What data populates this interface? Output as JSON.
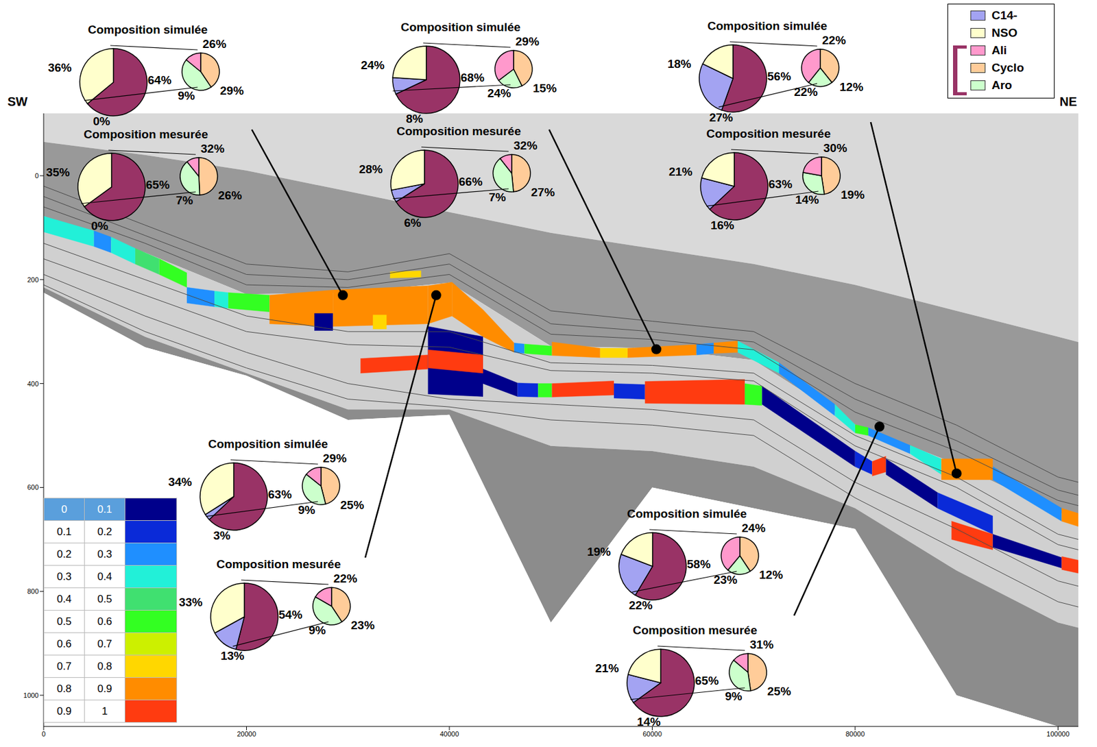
{
  "chart_data": {
    "type": "cross_section",
    "labels": {
      "left": "SW",
      "right": "NE"
    },
    "legend": "top-right",
    "series": [
      {
        "name": "C14-",
        "color": "#a3a3f2"
      },
      {
        "name": "NSO",
        "color": "#ffffcc"
      },
      {
        "name": "Ali",
        "color": "#ff99cc"
      },
      {
        "name": "Cyclo",
        "color": "#ffcc99"
      },
      {
        "name": "Aro",
        "color": "#ccffcc"
      }
    ],
    "group_color": "#993366",
    "xlim": [
      0,
      102000
    ],
    "xticks": [
      0,
      20000,
      40000,
      60000,
      80000,
      100000
    ],
    "ylim": [
      -120,
      1060
    ],
    "yticks": [
      0,
      200,
      400,
      600,
      800,
      1000
    ],
    "color_scale": {
      "bins": [
        0,
        0.1,
        0.2,
        0.3,
        0.4,
        0.5,
        0.6,
        0.7,
        0.8,
        0.9,
        1
      ],
      "colors": [
        "#00008b",
        "#0a2ad8",
        "#1f8fff",
        "#22f0d8",
        "#40e070",
        "#33ff22",
        "#ccf000",
        "#ffd700",
        "#ff8c00",
        "#ff3b10"
      ]
    },
    "grid_x": [
      0,
      10000,
      20000,
      30000,
      40000,
      50000,
      60000,
      70000,
      80000,
      90000,
      100000,
      102000
    ],
    "surfaces": {
      "dark_top": [
        -65,
        -40,
        -10,
        30,
        70,
        110,
        140,
        170,
        210,
        260,
        310,
        320
      ],
      "reservoir_top": [
        78,
        148,
        228,
        225,
        206,
        328,
        332,
        355,
        479,
        555,
        648,
        660
      ],
      "lower_dark_top": [
        215,
        310,
        380,
        450,
        450,
        520,
        530,
        560,
        640,
        760,
        860,
        870
      ],
      "base": [
        225,
        330,
        385,
        470,
        460,
        860,
        600,
        640,
        680,
        1000,
        1060,
        1060
      ],
      "horizons": [
        [
          20,
          95,
          170,
          185,
          150,
          260,
          280,
          300,
          400,
          480,
          580,
          590
        ],
        [
          40,
          115,
          190,
          200,
          170,
          285,
          300,
          320,
          430,
          510,
          605,
          615
        ],
        [
          60,
          130,
          210,
          215,
          190,
          305,
          315,
          335,
          455,
          530,
          625,
          635
        ],
        [
          130,
          200,
          270,
          300,
          300,
          360,
          365,
          380,
          500,
          580,
          690,
          700
        ],
        [
          160,
          230,
          300,
          325,
          330,
          375,
          380,
          395,
          520,
          600,
          710,
          720
        ],
        [
          190,
          270,
          340,
          400,
          430,
          440,
          450,
          470,
          590,
          680,
          780,
          790
        ],
        [
          210,
          300,
          370,
          430,
          445,
          470,
          480,
          500,
          620,
          720,
          820,
          830
        ]
      ]
    },
    "segments": [
      {
        "x": [
          0,
          4960
        ],
        "top": [
          78,
          106
        ],
        "base": [
          108,
          136
        ],
        "class": 3
      },
      {
        "x": [
          4960,
          6650
        ],
        "top": [
          106,
          118
        ],
        "base": [
          136,
          148
        ],
        "class": 2
      },
      {
        "x": [
          6650,
          9030
        ],
        "top": [
          118,
          140
        ],
        "base": [
          148,
          170
        ],
        "class": 3
      },
      {
        "x": [
          9030,
          11410
        ],
        "top": [
          140,
          160
        ],
        "base": [
          170,
          190
        ],
        "class": 4
      },
      {
        "x": [
          11410,
          14120
        ],
        "top": [
          160,
          187
        ],
        "base": [
          190,
          215
        ],
        "class": 5
      },
      {
        "x": [
          14120,
          16840
        ],
        "top": [
          215,
          222
        ],
        "base": [
          245,
          252
        ],
        "class": 2
      },
      {
        "x": [
          16840,
          18200
        ],
        "top": [
          222,
          225
        ],
        "base": [
          252,
          255
        ],
        "class": 3
      },
      {
        "x": [
          18200,
          22270
        ],
        "top": [
          225,
          230
        ],
        "base": [
          255,
          262
        ],
        "class": 5
      },
      {
        "x": [
          22270,
          28520
        ],
        "top": [
          230,
          220
        ],
        "base": [
          285,
          290
        ],
        "class": 8
      },
      {
        "x": [
          28520,
          37890
        ],
        "top": [
          220,
          212
        ],
        "base": [
          290,
          285
        ],
        "class": 8
      },
      {
        "x": [
          37890,
          40260
        ],
        "top": [
          212,
          205
        ],
        "base": [
          285,
          270
        ],
        "class": 8
      },
      {
        "x": [
          40260,
          43320
        ],
        "top": [
          205,
          258
        ],
        "base": [
          270,
          310
        ],
        "class": 8
      },
      {
        "x": [
          43320,
          46380
        ],
        "top": [
          258,
          322
        ],
        "base": [
          310,
          340
        ],
        "class": 8
      },
      {
        "x": [
          46380,
          47400
        ],
        "top": [
          322,
          324
        ],
        "base": [
          340,
          342
        ],
        "class": 2
      },
      {
        "x": [
          47400,
          50110
        ],
        "top": [
          324,
          328
        ],
        "base": [
          342,
          346
        ],
        "class": 5
      },
      {
        "x": [
          50110,
          54860
        ],
        "top": [
          320,
          332
        ],
        "base": [
          346,
          350
        ],
        "class": 8
      },
      {
        "x": [
          54860,
          57570
        ],
        "top": [
          332,
          332
        ],
        "base": [
          350,
          350
        ],
        "class": 7
      },
      {
        "x": [
          57570,
          64360
        ],
        "top": [
          332,
          325
        ],
        "base": [
          350,
          345
        ],
        "class": 8
      },
      {
        "x": [
          64360,
          66060
        ],
        "top": [
          325,
          322
        ],
        "base": [
          345,
          342
        ],
        "class": 2
      },
      {
        "x": [
          66060,
          68430
        ],
        "top": [
          322,
          318
        ],
        "base": [
          342,
          340
        ],
        "class": 8
      },
      {
        "x": [
          68430,
          72500
        ],
        "top": [
          318,
          360
        ],
        "base": [
          340,
          380
        ],
        "class": 3
      },
      {
        "x": [
          72500,
          78000
        ],
        "top": [
          360,
          440
        ],
        "base": [
          380,
          462
        ],
        "class": 2
      },
      {
        "x": [
          78000,
          80000
        ],
        "top": [
          440,
          479
        ],
        "base": [
          462,
          495
        ],
        "class": 3
      },
      {
        "x": [
          80000,
          81300
        ],
        "top": [
          479,
          485
        ],
        "base": [
          495,
          500
        ],
        "class": 5
      },
      {
        "x": [
          81300,
          85420
        ],
        "top": [
          485,
          519
        ],
        "base": [
          500,
          535
        ],
        "class": 2
      },
      {
        "x": [
          85420,
          88500
        ],
        "top": [
          519,
          545
        ],
        "base": [
          535,
          575
        ],
        "class": 3
      },
      {
        "x": [
          88500,
          93570
        ],
        "top": [
          545,
          545
        ],
        "base": [
          585,
          585
        ],
        "class": 8
      },
      {
        "x": [
          93570,
          100360
        ],
        "top": [
          560,
          640
        ],
        "base": [
          585,
          665
        ],
        "class": 2
      },
      {
        "x": [
          100360,
          102000
        ],
        "top": [
          640,
          650
        ],
        "base": [
          665,
          675
        ],
        "class": 8
      },
      {
        "x": [
          26690,
          28520
        ],
        "top": [
          265,
          265
        ],
        "base": [
          298,
          298
        ],
        "class": 0
      },
      {
        "x": [
          32460,
          33810
        ],
        "top": [
          268,
          268
        ],
        "base": [
          295,
          295
        ],
        "class": 7
      },
      {
        "x": [
          34150,
          37210
        ],
        "top": [
          185,
          183
        ],
        "base": [
          197,
          195
        ],
        "class": 7
      },
      {
        "x": [
          31240,
          37890
        ],
        "top": [
          352,
          345
        ],
        "base": [
          380,
          372
        ],
        "class": 9
      },
      {
        "x": [
          37890,
          43320
        ],
        "top": [
          290,
          310
        ],
        "base": [
          420,
          425
        ],
        "class": 0
      },
      {
        "x": [
          37890,
          43320
        ],
        "top": [
          335,
          345
        ],
        "base": [
          370,
          380
        ],
        "class": 9
      },
      {
        "x": [
          43320,
          46720
        ],
        "top": [
          372,
          399
        ],
        "base": [
          400,
          425
        ],
        "class": 0
      },
      {
        "x": [
          46720,
          48750
        ],
        "top": [
          399,
          400
        ],
        "base": [
          425,
          426
        ],
        "class": 1
      },
      {
        "x": [
          48750,
          50110
        ],
        "top": [
          400,
          400
        ],
        "base": [
          426,
          426
        ],
        "class": 5
      },
      {
        "x": [
          50110,
          56220
        ],
        "top": [
          400,
          395
        ],
        "base": [
          426,
          422
        ],
        "class": 9
      },
      {
        "x": [
          56220,
          59280
        ],
        "top": [
          400,
          402
        ],
        "base": [
          428,
          430
        ],
        "class": 1
      },
      {
        "x": [
          59280,
          69120
        ],
        "top": [
          396,
          392
        ],
        "base": [
          438,
          440
        ],
        "class": 9
      },
      {
        "x": [
          69120,
          70820
        ],
        "top": [
          400,
          405
        ],
        "base": [
          440,
          442
        ],
        "class": 5
      },
      {
        "x": [
          70820,
          79990
        ],
        "top": [
          405,
          530
        ],
        "base": [
          440,
          560
        ],
        "class": 0
      },
      {
        "x": [
          79990,
          81680
        ],
        "top": [
          530,
          550
        ],
        "base": [
          560,
          575
        ],
        "class": 1
      },
      {
        "x": [
          81680,
          83040
        ],
        "top": [
          550,
          540
        ],
        "base": [
          578,
          570
        ],
        "class": 9
      },
      {
        "x": [
          83040,
          88130
        ],
        "top": [
          545,
          610
        ],
        "base": [
          575,
          640
        ],
        "class": 0
      },
      {
        "x": [
          88130,
          93570
        ],
        "top": [
          610,
          655
        ],
        "base": [
          640,
          690
        ],
        "class": 1
      },
      {
        "x": [
          89500,
          93570
        ],
        "top": [
          665,
          690
        ],
        "base": [
          700,
          720
        ],
        "class": 9
      },
      {
        "x": [
          93570,
          100360
        ],
        "top": [
          690,
          735
        ],
        "base": [
          715,
          755
        ],
        "class": 0
      },
      {
        "x": [
          100360,
          102000
        ],
        "top": [
          733,
          740
        ],
        "base": [
          758,
          765
        ],
        "class": 9
      }
    ],
    "sites": [
      {
        "x": 29500,
        "depth": 230,
        "simulated": {
          "title": "Composition simulée",
          "main": {
            "values": [
              0,
              36,
              64
            ],
            "value_labels": [
              "0%",
              "36%",
              "64%"
            ]
          },
          "detail": {
            "values": [
              9,
              26,
              29
            ],
            "value_labels": [
              "9%",
              "26%",
              "29%"
            ]
          }
        },
        "measured": {
          "title": "Composition mesurée",
          "main": {
            "values": [
              0,
              35,
              65
            ],
            "value_labels": [
              "0%",
              "35%",
              "65%"
            ]
          },
          "detail": {
            "values": [
              7,
              32,
              26
            ],
            "value_labels": [
              "7%",
              "32%",
              "26%"
            ]
          }
        }
      },
      {
        "x": 38700,
        "depth": 230,
        "simulated": {
          "title": "Composition simulée",
          "main": {
            "values": [
              3,
              34,
              63
            ],
            "value_labels": [
              "3%",
              "34%",
              "63%"
            ]
          },
          "detail": {
            "values": [
              9,
              29,
              25
            ],
            "value_labels": [
              "9%",
              "29%",
              "25%"
            ]
          }
        },
        "measured": {
          "title": "Composition mesurée",
          "main": {
            "values": [
              13,
              33,
              54
            ],
            "value_labels": [
              "13%",
              "33%",
              "54%"
            ]
          },
          "detail": {
            "values": [
              9,
              22,
              23
            ],
            "value_labels": [
              "9%",
              "22%",
              "23%"
            ]
          }
        }
      },
      {
        "x": 60400,
        "depth": 334,
        "simulated": {
          "title": "Composition simulée",
          "main": {
            "values": [
              8,
              24,
              68
            ],
            "value_labels": [
              "8%",
              "24%",
              "68%"
            ]
          },
          "detail": {
            "values": [
              24,
              29,
              15
            ],
            "value_labels": [
              "24%",
              "29%",
              "15%"
            ]
          }
        },
        "measured": {
          "title": "Composition mesurée",
          "main": {
            "values": [
              6,
              28,
              66
            ],
            "value_labels": [
              "6%",
              "28%",
              "66%"
            ]
          },
          "detail": {
            "values": [
              7,
              32,
              27
            ],
            "value_labels": [
              "7%",
              "32%",
              "27%"
            ]
          }
        }
      },
      {
        "x": 82400,
        "depth": 483,
        "simulated": {
          "title": "Composition simulée",
          "main": {
            "values": [
              22,
              19,
              58
            ],
            "value_labels": [
              "22%",
              "19%",
              "58%"
            ]
          },
          "detail": {
            "values": [
              23,
              24,
              12
            ],
            "value_labels": [
              "23%",
              "24%",
              "12%"
            ]
          }
        },
        "measured": {
          "title": "Composition mesurée",
          "main": {
            "values": [
              14,
              21,
              65
            ],
            "value_labels": [
              "14%",
              "21%",
              "65%"
            ]
          },
          "detail": {
            "values": [
              9,
              31,
              25
            ],
            "value_labels": [
              "9%",
              "31%",
              "25%"
            ]
          }
        }
      },
      {
        "x": 90000,
        "depth": 573,
        "simulated": {
          "title": "Composition simulée",
          "main": {
            "values": [
              27,
              18,
              56
            ],
            "value_labels": [
              "27%",
              "18%",
              "56%"
            ]
          },
          "detail": {
            "values": [
              22,
              22,
              12
            ],
            "value_labels": [
              "22%",
              "22%",
              "12%"
            ]
          }
        },
        "measured": {
          "title": "Composition mesurée",
          "main": {
            "values": [
              16,
              21,
              63
            ],
            "value_labels": [
              "16%",
              "21%",
              "63%"
            ]
          },
          "detail": {
            "values": [
              14,
              30,
              19
            ],
            "value_labels": [
              "14%",
              "30%",
              "19%"
            ]
          }
        }
      }
    ]
  }
}
